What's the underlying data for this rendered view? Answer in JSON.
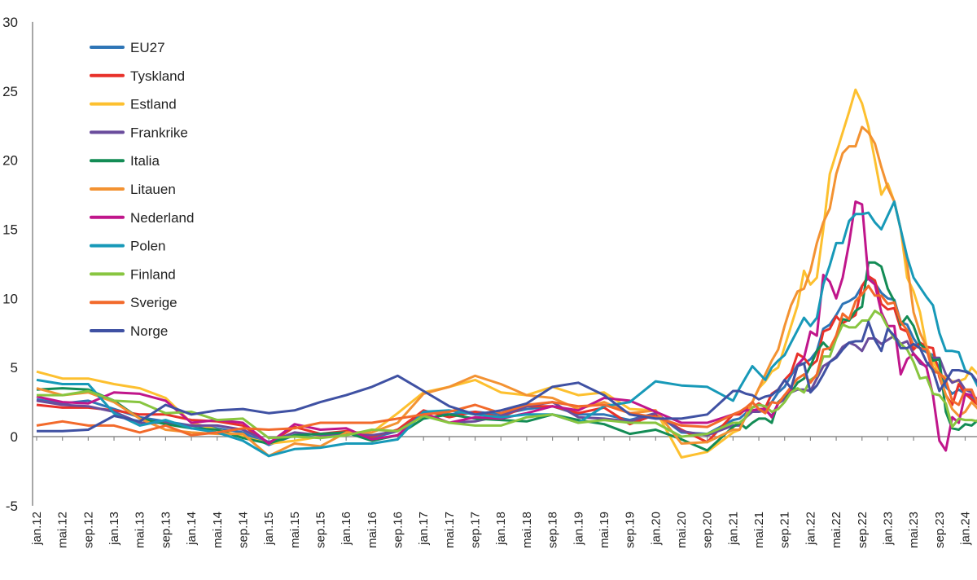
{
  "chart_data": {
    "type": "line",
    "title": "",
    "xlabel": "",
    "ylabel": "",
    "ylim": [
      -5,
      30
    ],
    "yticks": [
      -5,
      0,
      5,
      10,
      15,
      20,
      25,
      30
    ],
    "grid": false,
    "legend_placement": "top-left",
    "xtick_labels": [
      "jan.12",
      "mai.12",
      "sep.12",
      "jan.13",
      "mai.13",
      "sep.13",
      "jan.14",
      "mai.14",
      "sep.14",
      "jan.15",
      "mai.15",
      "sep.15",
      "jan.16",
      "mai.16",
      "sep.16",
      "jan.17",
      "mai.17",
      "sep.17",
      "jan.18",
      "mai.18",
      "sep.18",
      "jan.19",
      "mai.19",
      "sep.19",
      "jan.20",
      "mai.20",
      "sep.20",
      "jan.21",
      "mai.21",
      "sep.21",
      "jan.22",
      "mai.22",
      "sep.22",
      "jan.23",
      "mai.23",
      "sep.23",
      "jan.24"
    ],
    "x": [
      "2012-01",
      "2012-05",
      "2012-09",
      "2013-01",
      "2013-05",
      "2013-09",
      "2014-01",
      "2014-05",
      "2014-09",
      "2015-01",
      "2015-05",
      "2015-09",
      "2016-01",
      "2016-05",
      "2016-09",
      "2017-01",
      "2017-05",
      "2017-09",
      "2018-01",
      "2018-05",
      "2018-09",
      "2019-01",
      "2019-05",
      "2019-09",
      "2020-01",
      "2020-05",
      "2020-09",
      "2021-01",
      "2021-02",
      "2021-03",
      "2021-04",
      "2021-05",
      "2021-06",
      "2021-07",
      "2021-08",
      "2021-09",
      "2021-10",
      "2021-11",
      "2021-12",
      "2022-01",
      "2022-02",
      "2022-03",
      "2022-04",
      "2022-05",
      "2022-06",
      "2022-07",
      "2022-08",
      "2022-09",
      "2022-10",
      "2022-11",
      "2022-12",
      "2023-01",
      "2023-02",
      "2023-03",
      "2023-04",
      "2023-05",
      "2023-06",
      "2023-07",
      "2023-08",
      "2023-09",
      "2023-10",
      "2023-11",
      "2023-12",
      "2024-01",
      "2024-02",
      "2024-03"
    ],
    "series": [
      {
        "name": "EU27",
        "color": "#2e75b6",
        "values": [
          2.7,
          2.4,
          2.6,
          2.0,
          1.4,
          1.1,
          0.8,
          0.6,
          0.3,
          -0.6,
          0.1,
          -0.1,
          0.3,
          -0.1,
          0.4,
          1.8,
          1.6,
          1.8,
          1.6,
          2.0,
          2.2,
          1.6,
          1.6,
          1.2,
          1.7,
          0.3,
          0.2,
          1.2,
          1.3,
          1.7,
          2.1,
          2.3,
          2.2,
          2.5,
          3.2,
          3.6,
          4.4,
          5.2,
          5.3,
          5.6,
          6.2,
          7.8,
          8.1,
          8.8,
          9.6,
          9.8,
          10.1,
          10.9,
          11.5,
          11.1,
          10.4,
          10.0,
          9.9,
          8.3,
          8.1,
          7.1,
          6.4,
          6.1,
          5.9,
          4.9,
          3.6,
          3.1,
          3.4,
          3.1,
          2.8,
          2.6
        ]
      },
      {
        "name": "Tyskland",
        "color": "#e8312a",
        "values": [
          2.3,
          2.1,
          2.1,
          1.9,
          1.6,
          1.6,
          1.2,
          1.1,
          0.8,
          -0.5,
          0.7,
          0.2,
          0.4,
          0.0,
          0.5,
          1.9,
          1.4,
          1.8,
          1.4,
          2.2,
          2.2,
          1.7,
          2.1,
          0.9,
          1.6,
          0.5,
          -0.4,
          1.6,
          1.6,
          2.0,
          2.1,
          2.4,
          2.1,
          3.1,
          3.4,
          4.1,
          4.6,
          6.0,
          5.7,
          5.1,
          5.5,
          7.6,
          7.8,
          8.7,
          8.2,
          8.5,
          8.8,
          10.9,
          11.6,
          11.3,
          9.6,
          9.2,
          9.3,
          7.8,
          7.6,
          6.3,
          6.8,
          6.5,
          6.4,
          4.3,
          3.0,
          2.3,
          3.8,
          3.1,
          2.7,
          2.3
        ]
      },
      {
        "name": "Estland",
        "color": "#fdc02f",
        "values": [
          4.7,
          4.2,
          4.2,
          3.8,
          3.5,
          2.8,
          1.0,
          0.5,
          0.0,
          -0.5,
          -0.3,
          0.0,
          0.2,
          0.3,
          1.7,
          3.2,
          3.6,
          4.1,
          3.2,
          3.0,
          3.6,
          3.0,
          3.2,
          2.0,
          1.9,
          -1.5,
          -1.1,
          0.3,
          0.5,
          1.5,
          2.5,
          3.5,
          4.0,
          4.7,
          5.0,
          6.5,
          8.0,
          9.5,
          12.0,
          11.0,
          11.5,
          15.0,
          19.0,
          20.5,
          22.0,
          23.5,
          25.1,
          24.1,
          22.4,
          20.0,
          17.5,
          18.3,
          17.0,
          15.0,
          11.5,
          10.5,
          9.0,
          6.5,
          5.5,
          4.5,
          4.3,
          4.0,
          4.0,
          4.2,
          5.0,
          4.5
        ]
      },
      {
        "name": "Frankrike",
        "color": "#6a4c9c",
        "values": [
          2.6,
          2.3,
          2.2,
          1.8,
          1.0,
          1.0,
          0.8,
          0.8,
          0.5,
          -0.4,
          0.3,
          0.1,
          0.2,
          0.1,
          0.4,
          1.6,
          1.0,
          1.1,
          1.5,
          2.2,
          2.5,
          1.4,
          1.3,
          1.1,
          1.7,
          0.4,
          0.1,
          0.8,
          0.8,
          1.4,
          1.8,
          1.8,
          1.9,
          1.5,
          2.4,
          2.7,
          3.2,
          3.4,
          3.4,
          3.3,
          4.2,
          5.1,
          5.4,
          5.8,
          6.5,
          6.8,
          6.6,
          6.2,
          7.1,
          7.1,
          6.7,
          7.0,
          7.3,
          6.7,
          6.9,
          6.0,
          5.3,
          5.1,
          5.7,
          5.7,
          4.5,
          3.9,
          4.1,
          3.4,
          3.2,
          2.4
        ]
      },
      {
        "name": "Italia",
        "color": "#138c55",
        "values": [
          3.4,
          3.5,
          3.4,
          2.6,
          1.3,
          0.9,
          0.6,
          0.5,
          -0.1,
          -0.5,
          0.1,
          0.2,
          0.3,
          -0.3,
          0.1,
          1.3,
          1.6,
          1.3,
          1.2,
          1.1,
          1.6,
          1.2,
          0.9,
          0.2,
          0.5,
          -0.2,
          -1.0,
          0.7,
          1.0,
          0.6,
          1.0,
          1.3,
          1.3,
          1.0,
          2.5,
          2.9,
          3.2,
          3.9,
          4.2,
          5.1,
          6.2,
          6.8,
          6.3,
          7.3,
          8.5,
          8.4,
          9.1,
          9.4,
          12.6,
          12.6,
          12.3,
          10.7,
          9.8,
          8.1,
          8.7,
          8.0,
          6.7,
          6.3,
          5.5,
          5.6,
          1.8,
          0.6,
          0.5,
          0.9,
          0.8,
          1.2
        ]
      },
      {
        "name": "Litauen",
        "color": "#f39232",
        "values": [
          3.5,
          3.0,
          3.2,
          2.5,
          1.3,
          0.5,
          0.3,
          0.2,
          0.2,
          -1.4,
          -0.5,
          -0.7,
          0.3,
          0.3,
          1.0,
          3.1,
          3.6,
          4.4,
          3.8,
          3.0,
          2.8,
          2.0,
          2.5,
          1.7,
          1.9,
          -0.5,
          -0.4,
          0.5,
          0.5,
          1.5,
          2.5,
          3.5,
          4.5,
          5.5,
          6.3,
          8.0,
          9.5,
          10.5,
          10.7,
          12.0,
          14.0,
          15.5,
          16.5,
          19.0,
          20.5,
          21.0,
          21.0,
          22.4,
          22.0,
          21.2,
          19.5,
          18.0,
          17.0,
          15.0,
          12.5,
          9.0,
          7.5,
          6.5,
          5.0,
          4.5,
          3.0,
          2.0,
          1.5,
          1.8,
          2.5,
          2.0
        ]
      },
      {
        "name": "Nederland",
        "color": "#c0168b",
        "values": [
          2.9,
          2.5,
          2.4,
          3.2,
          3.1,
          2.6,
          1.0,
          1.2,
          1.0,
          -0.5,
          0.9,
          0.5,
          0.6,
          -0.2,
          0.1,
          1.7,
          1.0,
          1.4,
          1.3,
          1.7,
          2.2,
          1.9,
          2.8,
          2.6,
          1.8,
          1.0,
          1.0,
          1.6,
          1.8,
          1.9,
          1.9,
          2.0,
          2.0,
          1.4,
          2.4,
          3.0,
          3.4,
          5.2,
          5.7,
          7.6,
          7.3,
          11.7,
          11.2,
          10.0,
          11.5,
          14.0,
          17.0,
          16.8,
          11.4,
          11.0,
          9.0,
          8.0,
          8.0,
          4.5,
          5.6,
          6.0,
          5.5,
          5.0,
          3.0,
          -0.3,
          -1.0,
          1.4,
          1.0,
          3.1,
          3.0,
          2.7
        ]
      },
      {
        "name": "Polen",
        "color": "#1799b8",
        "values": [
          4.1,
          3.8,
          3.8,
          1.7,
          0.8,
          1.2,
          0.6,
          0.3,
          -0.3,
          -1.4,
          -0.9,
          -0.8,
          -0.5,
          -0.5,
          -0.2,
          1.8,
          1.9,
          1.6,
          1.4,
          1.6,
          1.6,
          1.0,
          2.2,
          2.5,
          4.0,
          3.7,
          3.6,
          2.6,
          3.5,
          4.3,
          5.1,
          4.6,
          4.1,
          5.0,
          5.5,
          5.9,
          6.8,
          7.7,
          8.6,
          8.0,
          8.6,
          11.0,
          12.4,
          14.0,
          14.0,
          15.6,
          16.1,
          16.1,
          16.2,
          15.5,
          15.0,
          16.0,
          17.0,
          15.0,
          13.0,
          11.5,
          10.8,
          10.1,
          9.5,
          7.5,
          6.2,
          6.2,
          6.1,
          4.8,
          4.5,
          3.6
        ]
      },
      {
        "name": "Finland",
        "color": "#88c540",
        "values": [
          3.0,
          3.0,
          3.3,
          2.6,
          2.5,
          1.7,
          1.8,
          1.2,
          1.3,
          -0.1,
          0.0,
          -0.1,
          0.1,
          0.5,
          0.4,
          1.5,
          1.0,
          0.8,
          0.8,
          1.4,
          1.6,
          1.0,
          1.2,
          1.0,
          1.0,
          0.0,
          0.2,
          1.0,
          1.0,
          1.4,
          2.1,
          2.3,
          2.2,
          1.8,
          2.0,
          2.5,
          3.2,
          3.5,
          3.2,
          4.1,
          4.4,
          5.8,
          5.8,
          7.1,
          8.1,
          7.9,
          7.9,
          8.4,
          8.4,
          9.1,
          8.8,
          7.9,
          7.1,
          6.7,
          6.3,
          5.4,
          4.2,
          4.3,
          3.1,
          3.0,
          2.4,
          0.7,
          1.3,
          1.2,
          1.2,
          1.1
        ]
      },
      {
        "name": "Sverige",
        "color": "#f26a2b",
        "values": [
          0.8,
          1.1,
          0.8,
          0.8,
          0.3,
          0.8,
          0.1,
          0.3,
          0.6,
          0.5,
          0.6,
          1.0,
          1.0,
          1.0,
          1.3,
          1.6,
          1.8,
          2.3,
          1.7,
          2.3,
          2.5,
          2.2,
          2.3,
          1.7,
          1.4,
          0.8,
          0.7,
          1.6,
          1.8,
          2.1,
          2.5,
          2.0,
          1.7,
          2.5,
          2.4,
          3.0,
          3.6,
          4.2,
          4.5,
          3.9,
          4.5,
          6.3,
          6.4,
          7.3,
          8.9,
          8.5,
          9.8,
          10.3,
          10.9,
          10.2,
          10.2,
          9.6,
          9.7,
          8.3,
          7.7,
          6.6,
          6.4,
          6.3,
          4.7,
          4.6,
          4.1,
          2.6,
          2.3,
          3.4,
          3.4,
          2.3
        ]
      },
      {
        "name": "Norge",
        "color": "#3f51a3",
        "values": [
          0.4,
          0.4,
          0.5,
          1.5,
          1.1,
          2.3,
          1.6,
          1.9,
          2.0,
          1.7,
          1.9,
          2.5,
          3.0,
          3.6,
          4.4,
          3.3,
          2.2,
          1.6,
          1.9,
          2.4,
          3.6,
          3.9,
          3.0,
          1.6,
          1.3,
          1.3,
          1.6,
          3.3,
          3.3,
          3.1,
          3.0,
          2.7,
          2.9,
          3.0,
          3.4,
          4.1,
          3.5,
          5.1,
          5.3,
          3.2,
          3.7,
          4.5,
          5.4,
          5.7,
          6.3,
          6.8,
          6.9,
          6.9,
          8.3,
          7.0,
          6.2,
          7.8,
          7.3,
          6.4,
          6.4,
          6.7,
          6.4,
          5.4,
          4.8,
          3.3,
          4.0,
          4.8,
          4.8,
          4.7,
          4.5,
          3.9
        ]
      }
    ]
  }
}
